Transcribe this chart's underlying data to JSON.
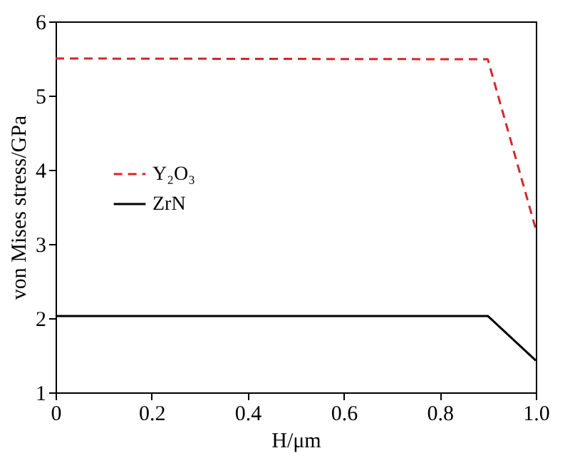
{
  "chart_data": {
    "type": "line",
    "xlabel": "H/μm",
    "ylabel": "von Mises stress/GPa",
    "x": [
      0,
      0.9,
      1.0
    ],
    "series": [
      {
        "name": "Y₂O₃",
        "color": "#d62728",
        "line_style": "dashed",
        "values": [
          5.5,
          5.49,
          3.2
        ]
      },
      {
        "name": "ZrN",
        "color": "#000000",
        "line_style": "solid",
        "values": [
          2.03,
          2.03,
          1.43
        ]
      }
    ],
    "xlim": [
      0,
      1
    ],
    "xticks": [
      0,
      0.2,
      0.4,
      0.6,
      0.8,
      {
        "value": 1,
        "label": "1.0"
      }
    ],
    "ylim": [
      1,
      6
    ],
    "yticks": [
      1,
      2,
      3,
      4,
      5,
      6
    ],
    "grid": false,
    "legend": "left",
    "marker": "none"
  }
}
